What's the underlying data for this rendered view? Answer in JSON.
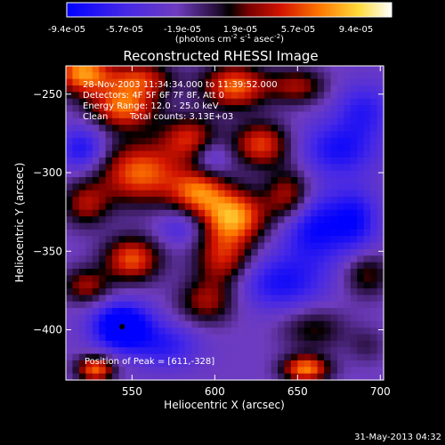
{
  "chart_data": {
    "type": "heatmap",
    "title": "Reconstructed RHESSI Image",
    "xlabel": "Heliocentric X (arcsec)",
    "ylabel": "Heliocentric Y (arcsec)",
    "xlim": [
      510,
      702
    ],
    "ylim": [
      -432,
      -232
    ],
    "x_ticks": [
      550,
      600,
      650,
      700
    ],
    "y_ticks": [
      -250,
      -300,
      -350,
      -400
    ],
    "colorbar": {
      "ticks": [
        "-9.4e-05",
        "-5.7e-05",
        "-1.9e-05",
        "1.9e-05",
        "5.7e-05",
        "9.4e-05"
      ],
      "range": [
        -9.4e-05,
        9.4e-05
      ],
      "unit_main": "(photons cm",
      "unit_sup1": "-2",
      "unit_mid": " s",
      "unit_sup2": "-1",
      "unit_mid2": " asec",
      "unit_sup3": "-2",
      "unit_end": ")"
    },
    "annotations": {
      "time_range": "28-Nov-2003 11:34:34.000 to 11:39:52.000",
      "detectors": "Detectors: 4F 5F 6F 7F 8F, Att 0",
      "energy": "Energy Range: 12.0 - 25.0 keV",
      "method": "Clean",
      "counts": "Total counts: 3.13E+03",
      "peak": "Position of Peak = [611,-328]"
    },
    "peak_position": [
      611,
      -328
    ],
    "minimum_marker": [
      544,
      -398
    ],
    "features": [
      {
        "x": 520,
        "y": -236,
        "value": 9e-05,
        "sx": 12,
        "sy": 10
      },
      {
        "x": 555,
        "y": -240,
        "value": 6e-05,
        "sx": 14,
        "sy": 8
      },
      {
        "x": 545,
        "y": -258,
        "value": 8e-05,
        "sx": 14,
        "sy": 10
      },
      {
        "x": 612,
        "y": -245,
        "value": 8e-05,
        "sx": 14,
        "sy": 10
      },
      {
        "x": 650,
        "y": -245,
        "value": 5e-05,
        "sx": 12,
        "sy": 8
      },
      {
        "x": 585,
        "y": -278,
        "value": 6e-05,
        "sx": 12,
        "sy": 10
      },
      {
        "x": 628,
        "y": -282,
        "value": 7e-05,
        "sx": 12,
        "sy": 10
      },
      {
        "x": 555,
        "y": -300,
        "value": 8e-05,
        "sx": 18,
        "sy": 14
      },
      {
        "x": 611,
        "y": -328,
        "value": 9.4e-05,
        "sx": 14,
        "sy": 12
      },
      {
        "x": 590,
        "y": -312,
        "value": 7e-05,
        "sx": 12,
        "sy": 10
      },
      {
        "x": 645,
        "y": -315,
        "value": 6e-05,
        "sx": 10,
        "sy": 12
      },
      {
        "x": 522,
        "y": -320,
        "value": 5e-05,
        "sx": 10,
        "sy": 10
      },
      {
        "x": 550,
        "y": -355,
        "value": 7.5e-05,
        "sx": 12,
        "sy": 10
      },
      {
        "x": 522,
        "y": -372,
        "value": 5e-05,
        "sx": 10,
        "sy": 8
      },
      {
        "x": 605,
        "y": -355,
        "value": 6e-05,
        "sx": 12,
        "sy": 12
      },
      {
        "x": 595,
        "y": -382,
        "value": 5e-05,
        "sx": 12,
        "sy": 10
      },
      {
        "x": 660,
        "y": -400,
        "value": 3.5e-05,
        "sx": 14,
        "sy": 10
      },
      {
        "x": 692,
        "y": -365,
        "value": 4e-05,
        "sx": 10,
        "sy": 10
      },
      {
        "x": 692,
        "y": -410,
        "value": 2e-05,
        "sx": 8,
        "sy": 8
      },
      {
        "x": 655,
        "y": -425,
        "value": 8.5e-05,
        "sx": 10,
        "sy": 6
      },
      {
        "x": 528,
        "y": -425,
        "value": 8e-05,
        "sx": 8,
        "sy": 6
      },
      {
        "x": 675,
        "y": -285,
        "value": -5e-05,
        "sx": 16,
        "sy": 12
      },
      {
        "x": 660,
        "y": -335,
        "value": -6e-05,
        "sx": 14,
        "sy": 16
      },
      {
        "x": 640,
        "y": -370,
        "value": -5e-05,
        "sx": 18,
        "sy": 12
      },
      {
        "x": 690,
        "y": -260,
        "value": -4e-05,
        "sx": 12,
        "sy": 12
      },
      {
        "x": 520,
        "y": -285,
        "value": -5e-05,
        "sx": 10,
        "sy": 10
      },
      {
        "x": 544,
        "y": -398,
        "value": -9.4e-05,
        "sx": 12,
        "sy": 10
      },
      {
        "x": 570,
        "y": -410,
        "value": -4e-05,
        "sx": 14,
        "sy": 10
      },
      {
        "x": 598,
        "y": -290,
        "value": -3e-05,
        "sx": 8,
        "sy": 8
      },
      {
        "x": 580,
        "y": -335,
        "value": -3e-05,
        "sx": 10,
        "sy": 8
      },
      {
        "x": 685,
        "y": -330,
        "value": -5e-05,
        "sx": 10,
        "sy": 14
      }
    ]
  },
  "footer": {
    "date": "31-May-2013 04:32"
  }
}
